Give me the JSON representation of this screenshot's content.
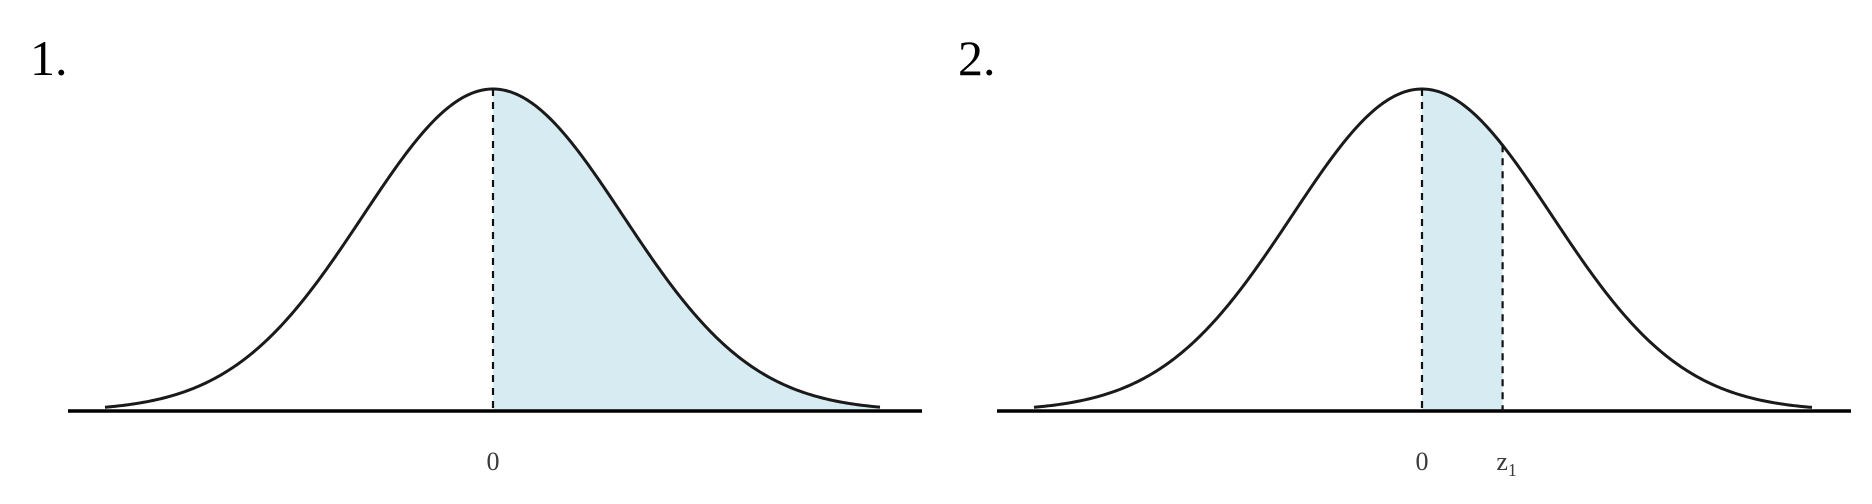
{
  "panels": [
    {
      "number": "1.",
      "ticks": [
        {
          "label": "0",
          "sub": "",
          "z": 0
        }
      ],
      "shade_from": 0,
      "shade_to": "inf",
      "dashed_at": [
        0
      ]
    },
    {
      "number": "2.",
      "ticks": [
        {
          "label": "0",
          "sub": "",
          "z": 0
        },
        {
          "label": "z",
          "sub": "1",
          "z": 0.62
        }
      ],
      "shade_from": 0,
      "shade_to": 0.62,
      "dashed_at": [
        0,
        0.62
      ]
    }
  ],
  "colors": {
    "shade": "#d7ebf2",
    "curve": "#1a1a1a",
    "axis": "#000000"
  }
}
